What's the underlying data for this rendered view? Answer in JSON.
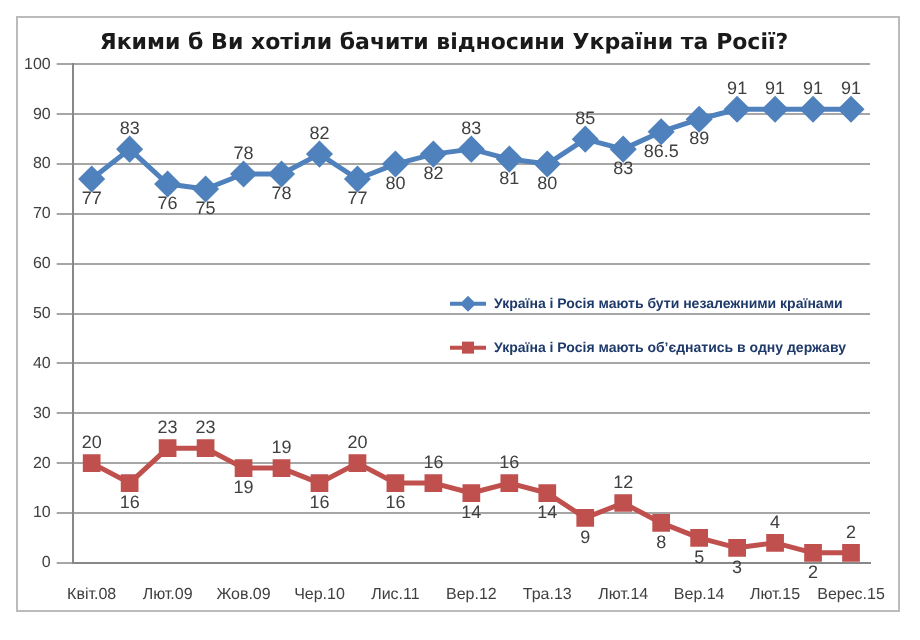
{
  "chart_data": {
    "type": "line",
    "title": "Якими б Ви хотіли бачити відносини України та Росії?",
    "categories": [
      "Квіт.08",
      null,
      "Лют.09",
      null,
      "Жов.09",
      null,
      "Чер.10",
      null,
      "Лис.11",
      null,
      "Вер.12",
      null,
      "Тра.13",
      null,
      "Лют.14",
      null,
      "Вер.14",
      null,
      "Лют.15",
      null,
      "Верес.15"
    ],
    "series": [
      {
        "name": "Україна і Росія мають бути незалежними країнами",
        "color": "#4f81bd",
        "marker": "diamond",
        "values": [
          77,
          83,
          76,
          75,
          78,
          78,
          82,
          77,
          80,
          82,
          83,
          81,
          80,
          85,
          83,
          86.5,
          89,
          91,
          91,
          91,
          91
        ]
      },
      {
        "name": "Україна і Росія мають об’єднатись в одну державу",
        "color": "#c0504d",
        "marker": "square",
        "values": [
          20,
          16,
          23,
          23,
          19,
          19,
          16,
          20,
          16,
          16,
          14,
          16,
          14,
          9,
          12,
          8,
          5,
          3,
          4,
          2,
          2
        ]
      }
    ],
    "ylim": [
      0,
      100
    ],
    "yticks": [
      0,
      10,
      20,
      30,
      40,
      50,
      60,
      70,
      80,
      90,
      100
    ],
    "grid": "y",
    "legend": "right",
    "data_labels": true,
    "line_style": "solid"
  }
}
